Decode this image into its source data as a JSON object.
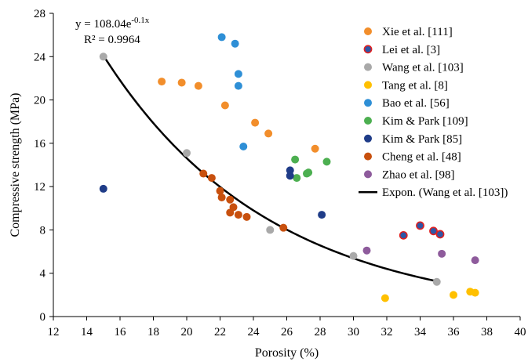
{
  "chart_data": {
    "type": "scatter",
    "xlabel": "Porosity (%)",
    "ylabel": "Compressive strength (MPa)",
    "xlim": [
      12,
      40
    ],
    "ylim": [
      0,
      28
    ],
    "xticks": [
      12,
      14,
      16,
      18,
      20,
      22,
      24,
      26,
      28,
      30,
      32,
      34,
      36,
      38,
      40
    ],
    "yticks": [
      0,
      4,
      8,
      12,
      16,
      20,
      24,
      28
    ],
    "grid": false,
    "legend_position": "top-right",
    "annotation": {
      "equation_prefix": "y = 108.04e",
      "equation_exponent": "-0.1x",
      "r2": "R² = 0.9964"
    },
    "series": [
      {
        "name": "Xie et al. [111]",
        "color": "#F28E2B",
        "ring": "",
        "points": [
          [
            18.5,
            21.7
          ],
          [
            19.7,
            21.6
          ],
          [
            20.7,
            21.3
          ],
          [
            22.3,
            19.5
          ],
          [
            24.1,
            17.9
          ],
          [
            24.9,
            16.9
          ],
          [
            27.7,
            15.5
          ]
        ]
      },
      {
        "name": "Lei et al. [3]",
        "color": "#2E56A6",
        "ring": "#E02020",
        "points": [
          [
            33.0,
            7.5
          ],
          [
            34.0,
            8.4
          ],
          [
            34.8,
            7.9
          ],
          [
            35.2,
            7.6
          ]
        ]
      },
      {
        "name": "Wang et al. [103]",
        "color": "#A9A9A9",
        "ring": "",
        "points": [
          [
            15.0,
            24.0
          ],
          [
            20.0,
            15.1
          ],
          [
            25.0,
            8.0
          ],
          [
            30.0,
            5.6
          ],
          [
            35.0,
            3.2
          ]
        ]
      },
      {
        "name": "Tang et al. [8]",
        "color": "#FFC000",
        "ring": "",
        "points": [
          [
            31.9,
            1.7
          ],
          [
            36.0,
            2.0
          ],
          [
            37.0,
            2.3
          ],
          [
            37.3,
            2.2
          ]
        ]
      },
      {
        "name": "Bao et al. [56]",
        "color": "#2E8FD6",
        "ring": "",
        "points": [
          [
            22.1,
            25.8
          ],
          [
            22.9,
            25.2
          ],
          [
            23.1,
            22.4
          ],
          [
            23.1,
            21.3
          ],
          [
            23.4,
            15.7
          ]
        ]
      },
      {
        "name": "Kim & Park [109]",
        "color": "#4CAF50",
        "ring": "",
        "points": [
          [
            26.5,
            14.5
          ],
          [
            26.6,
            12.8
          ],
          [
            27.2,
            13.2
          ],
          [
            27.3,
            13.3
          ],
          [
            28.4,
            14.3
          ]
        ]
      },
      {
        "name": "Kim & Park [85]",
        "color": "#1F3C88",
        "ring": "",
        "points": [
          [
            15.0,
            11.8
          ],
          [
            26.2,
            13.5
          ],
          [
            26.2,
            13.0
          ],
          [
            28.1,
            9.4
          ]
        ]
      },
      {
        "name": "Cheng et al. [48]",
        "color": "#C8500E",
        "ring": "",
        "points": [
          [
            21.0,
            13.2
          ],
          [
            21.5,
            12.8
          ],
          [
            22.0,
            11.6
          ],
          [
            22.1,
            11.0
          ],
          [
            22.6,
            10.8
          ],
          [
            22.6,
            9.6
          ],
          [
            22.8,
            10.1
          ],
          [
            23.1,
            9.4
          ],
          [
            23.6,
            9.2
          ],
          [
            25.8,
            8.2
          ]
        ]
      },
      {
        "name": "Zhao et al. [98]",
        "color": "#8E5B9C",
        "ring": "",
        "points": [
          [
            30.8,
            6.1
          ],
          [
            35.3,
            5.8
          ],
          [
            37.3,
            5.2
          ]
        ]
      }
    ],
    "trendline": {
      "name": "Expon. (Wang et al. [103])",
      "color": "#000000",
      "a": 108.04,
      "b": -0.1,
      "x_range": [
        15,
        35
      ]
    }
  }
}
